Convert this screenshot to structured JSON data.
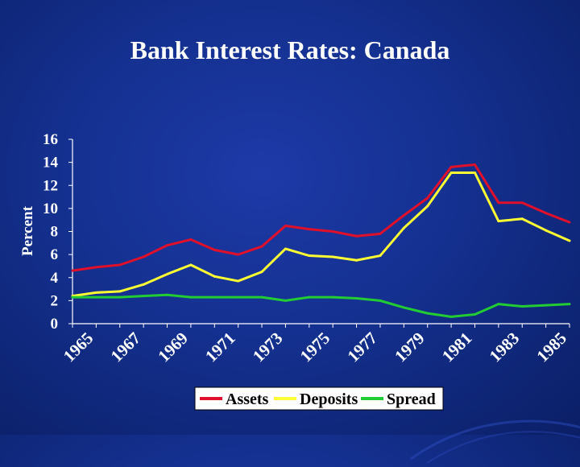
{
  "slide": {
    "title": "Bank Interest Rates: Canada"
  },
  "colors": {
    "background": "#14308f",
    "text": "#ffffff",
    "assets": "#e0102a",
    "deposits": "#ffff33",
    "spread": "#22cc33",
    "legend_bg": "#ffffff",
    "legend_text": "#000000"
  },
  "chart_data": {
    "type": "line",
    "title": "Bank Interest Rates: Canada",
    "xlabel": "",
    "ylabel": "Percent",
    "xlim": [
      1965,
      1986
    ],
    "ylim": [
      0,
      16
    ],
    "y_ticks": [
      0,
      2,
      4,
      6,
      8,
      10,
      12,
      14,
      16
    ],
    "x_tick_labels": [
      "1965",
      "1967",
      "1969",
      "1971",
      "1973",
      "1975",
      "1977",
      "1979",
      "1981",
      "1983",
      "1985"
    ],
    "grid": false,
    "legend_position": "bottom",
    "x": [
      1965,
      1966,
      1967,
      1968,
      1969,
      1970,
      1971,
      1972,
      1973,
      1974,
      1975,
      1976,
      1977,
      1978,
      1979,
      1980,
      1981,
      1982,
      1983,
      1984,
      1985,
      1986
    ],
    "series": [
      {
        "name": "Assets",
        "color": "#e0102a",
        "values": [
          4.6,
          4.9,
          5.1,
          5.8,
          6.8,
          7.3,
          6.4,
          6.0,
          6.7,
          8.5,
          8.2,
          8.0,
          7.6,
          7.8,
          9.4,
          10.9,
          13.6,
          13.8,
          10.5,
          10.5,
          9.6,
          8.8
        ]
      },
      {
        "name": "Deposits",
        "color": "#ffff33",
        "values": [
          2.4,
          2.7,
          2.8,
          3.4,
          4.3,
          5.1,
          4.1,
          3.7,
          4.5,
          6.5,
          5.9,
          5.8,
          5.5,
          5.9,
          8.3,
          10.2,
          13.1,
          13.1,
          8.9,
          9.1,
          8.1,
          7.2
        ]
      },
      {
        "name": "Spread",
        "color": "#22cc33",
        "values": [
          2.3,
          2.3,
          2.3,
          2.4,
          2.5,
          2.3,
          2.3,
          2.3,
          2.3,
          2.0,
          2.3,
          2.3,
          2.2,
          2.0,
          1.4,
          0.9,
          0.6,
          0.8,
          1.7,
          1.5,
          1.6,
          1.7
        ]
      }
    ]
  }
}
